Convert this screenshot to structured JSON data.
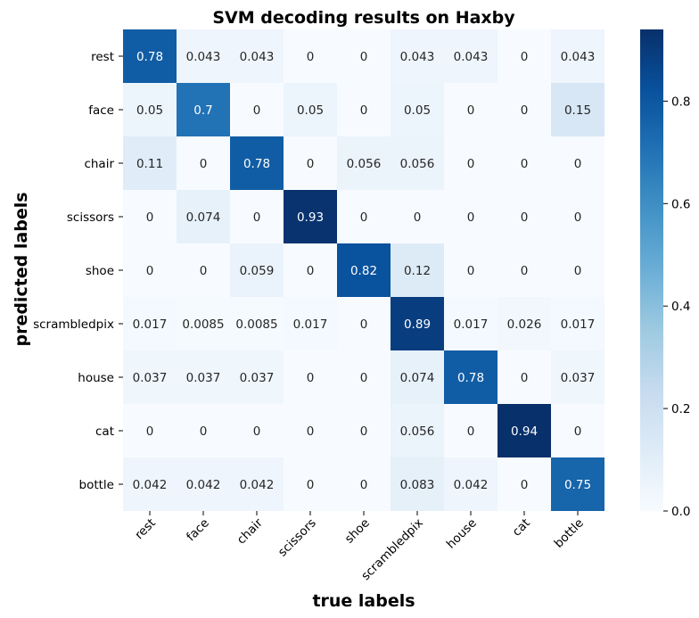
{
  "chart_data": {
    "type": "heatmap",
    "title": "SVM decoding results on Haxby",
    "xlabel": "true labels",
    "ylabel": "predicted labels",
    "x_categories": [
      "rest",
      "face",
      "chair",
      "scissors",
      "shoe",
      "scrambledpix",
      "house",
      "cat",
      "bottle"
    ],
    "y_categories": [
      "rest",
      "face",
      "chair",
      "scissors",
      "shoe",
      "scrambledpix",
      "house",
      "cat",
      "bottle"
    ],
    "values": [
      [
        0.78,
        0.043,
        0.043,
        0,
        0,
        0.043,
        0.043,
        0,
        0.043
      ],
      [
        0.05,
        0.7,
        0,
        0.05,
        0,
        0.05,
        0,
        0,
        0.15
      ],
      [
        0.11,
        0,
        0.78,
        0,
        0.056,
        0.056,
        0,
        0,
        0
      ],
      [
        0,
        0.074,
        0,
        0.93,
        0,
        0,
        0,
        0,
        0
      ],
      [
        0,
        0,
        0.059,
        0,
        0.82,
        0.12,
        0,
        0,
        0
      ],
      [
        0.017,
        0.0085,
        0.0085,
        0.017,
        0,
        0.89,
        0.017,
        0.026,
        0.017
      ],
      [
        0.037,
        0.037,
        0.037,
        0,
        0,
        0.074,
        0.78,
        0,
        0.037
      ],
      [
        0,
        0,
        0,
        0,
        0,
        0.056,
        0,
        0.94,
        0
      ],
      [
        0.042,
        0.042,
        0.042,
        0,
        0,
        0.083,
        0.042,
        0,
        0.75
      ]
    ],
    "cell_labels": [
      [
        "0.78",
        "0.043",
        "0.043",
        "0",
        "0",
        "0.043",
        "0.043",
        "0",
        "0.043"
      ],
      [
        "0.05",
        "0.7",
        "0",
        "0.05",
        "0",
        "0.05",
        "0",
        "0",
        "0.15"
      ],
      [
        "0.11",
        "0",
        "0.78",
        "0",
        "0.056",
        "0.056",
        "0",
        "0",
        "0"
      ],
      [
        "0",
        "0.074",
        "0",
        "0.93",
        "0",
        "0",
        "0",
        "0",
        "0"
      ],
      [
        "0",
        "0",
        "0.059",
        "0",
        "0.82",
        "0.12",
        "0",
        "0",
        "0"
      ],
      [
        "0.017",
        "0.0085",
        "0.0085",
        "0.017",
        "0",
        "0.89",
        "0.017",
        "0.026",
        "0.017"
      ],
      [
        "0.037",
        "0.037",
        "0.037",
        "0",
        "0",
        "0.074",
        "0.78",
        "0",
        "0.037"
      ],
      [
        "0",
        "0",
        "0",
        "0",
        "0",
        "0.056",
        "0",
        "0.94",
        "0"
      ],
      [
        "0.042",
        "0.042",
        "0.042",
        "0",
        "0",
        "0.083",
        "0.042",
        "0",
        "0.75"
      ]
    ],
    "colorbar": {
      "colormap": "Blues",
      "range": [
        0,
        0.94
      ],
      "ticks": [
        0.0,
        0.2,
        0.4,
        0.6,
        0.8
      ],
      "tick_labels": [
        "0.0",
        "0.2",
        "0.4",
        "0.6",
        "0.8"
      ]
    }
  }
}
